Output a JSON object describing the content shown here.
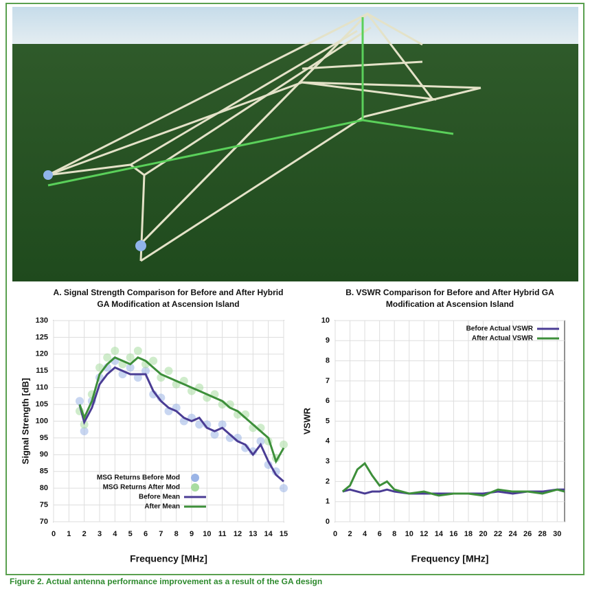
{
  "chart_data": [
    {
      "type": "line",
      "title": "A. Signal Strength Comparison for Before and After Hybrid GA Modification at Ascension Island",
      "xlabel": "Frequency [MHz]",
      "ylabel": "Signal Strength [dB]",
      "xlim": [
        0,
        15
      ],
      "xticks": [
        0,
        1,
        2,
        3,
        4,
        5,
        6,
        7,
        8,
        9,
        10,
        11,
        12,
        13,
        14,
        15
      ],
      "ylim": [
        70,
        130
      ],
      "yticks": [
        130,
        125,
        120,
        115,
        110,
        105,
        100,
        95,
        90,
        85,
        80,
        75,
        70
      ],
      "grid": true,
      "legend": "lower left",
      "x": [
        1.7,
        2,
        2.5,
        3,
        3.5,
        4,
        4.5,
        5,
        5.5,
        6,
        6.5,
        7,
        7.5,
        8,
        8.5,
        9,
        9.5,
        10,
        10.5,
        11,
        11.5,
        12,
        12.5,
        13,
        13.5,
        14,
        14.5,
        15
      ],
      "series": [
        {
          "name": "MSG Returns Before Mod",
          "type": "scatter",
          "color": "#9ab4e6",
          "values": [
            106,
            97,
            106,
            113,
            116,
            118,
            114,
            116,
            113,
            115,
            108,
            107,
            103,
            104,
            100,
            101,
            99,
            99,
            96,
            99,
            95,
            95,
            92,
            91,
            94,
            87,
            85,
            80
          ]
        },
        {
          "name": "MSG Returns After Mod",
          "type": "scatter",
          "color": "#a8dca0",
          "values": [
            103,
            99,
            108,
            116,
            119,
            121,
            117,
            119,
            121,
            117,
            118,
            113,
            115,
            111,
            112,
            109,
            110,
            107,
            108,
            105,
            105,
            102,
            102,
            98,
            98,
            94,
            89,
            93
          ]
        },
        {
          "name": "Before Mean",
          "type": "line",
          "color": "#4a3c94",
          "values": [
            104.8,
            99.7,
            104,
            111,
            114,
            116,
            115,
            114,
            114,
            114,
            109,
            106,
            104,
            103,
            101,
            100,
            101,
            98,
            97,
            98,
            96,
            94,
            93,
            90,
            93,
            88,
            84,
            82
          ]
        },
        {
          "name": "After Mean",
          "type": "line",
          "color": "#3d8f3a",
          "values": [
            105,
            101,
            106,
            114,
            117,
            119,
            118,
            117,
            119,
            118,
            116,
            114,
            113,
            112,
            111,
            110,
            109,
            108,
            107,
            106,
            104,
            103,
            101,
            99,
            97,
            95,
            88,
            92
          ]
        }
      ]
    },
    {
      "type": "line",
      "title": "B. VSWR Comparison for Before and After Hybrid GA Modification at Ascension Island",
      "xlabel": "Frequency [MHz]",
      "ylabel": "VSWR",
      "xlim": [
        0,
        31
      ],
      "xticks": [
        0,
        2,
        4,
        6,
        8,
        10,
        12,
        14,
        16,
        18,
        20,
        22,
        24,
        26,
        28,
        30
      ],
      "ylim": [
        0,
        10
      ],
      "yticks": [
        10,
        9,
        8,
        7,
        6,
        5,
        4,
        3,
        2,
        1,
        0
      ],
      "grid": true,
      "legend": "upper right",
      "x": [
        1,
        2,
        3,
        4,
        5,
        6,
        7,
        8,
        10,
        12,
        14,
        16,
        18,
        20,
        22,
        24,
        26,
        28,
        30,
        31
      ],
      "series": [
        {
          "name": "Before Actual VSWR",
          "type": "line",
          "color": "#4a3c94",
          "values": [
            1.5,
            1.6,
            1.5,
            1.4,
            1.5,
            1.5,
            1.6,
            1.5,
            1.4,
            1.4,
            1.4,
            1.4,
            1.4,
            1.4,
            1.5,
            1.4,
            1.5,
            1.5,
            1.6,
            1.6
          ]
        },
        {
          "name": "After Actual VSWR",
          "type": "line",
          "color": "#3d8f3a",
          "values": [
            1.5,
            1.8,
            2.6,
            2.9,
            2.3,
            1.8,
            2.0,
            1.6,
            1.4,
            1.5,
            1.3,
            1.4,
            1.4,
            1.3,
            1.6,
            1.5,
            1.5,
            1.4,
            1.6,
            1.5
          ]
        }
      ]
    }
  ],
  "caption": "Figure 2.  Actual antenna performance improvement as a result of the GA design"
}
